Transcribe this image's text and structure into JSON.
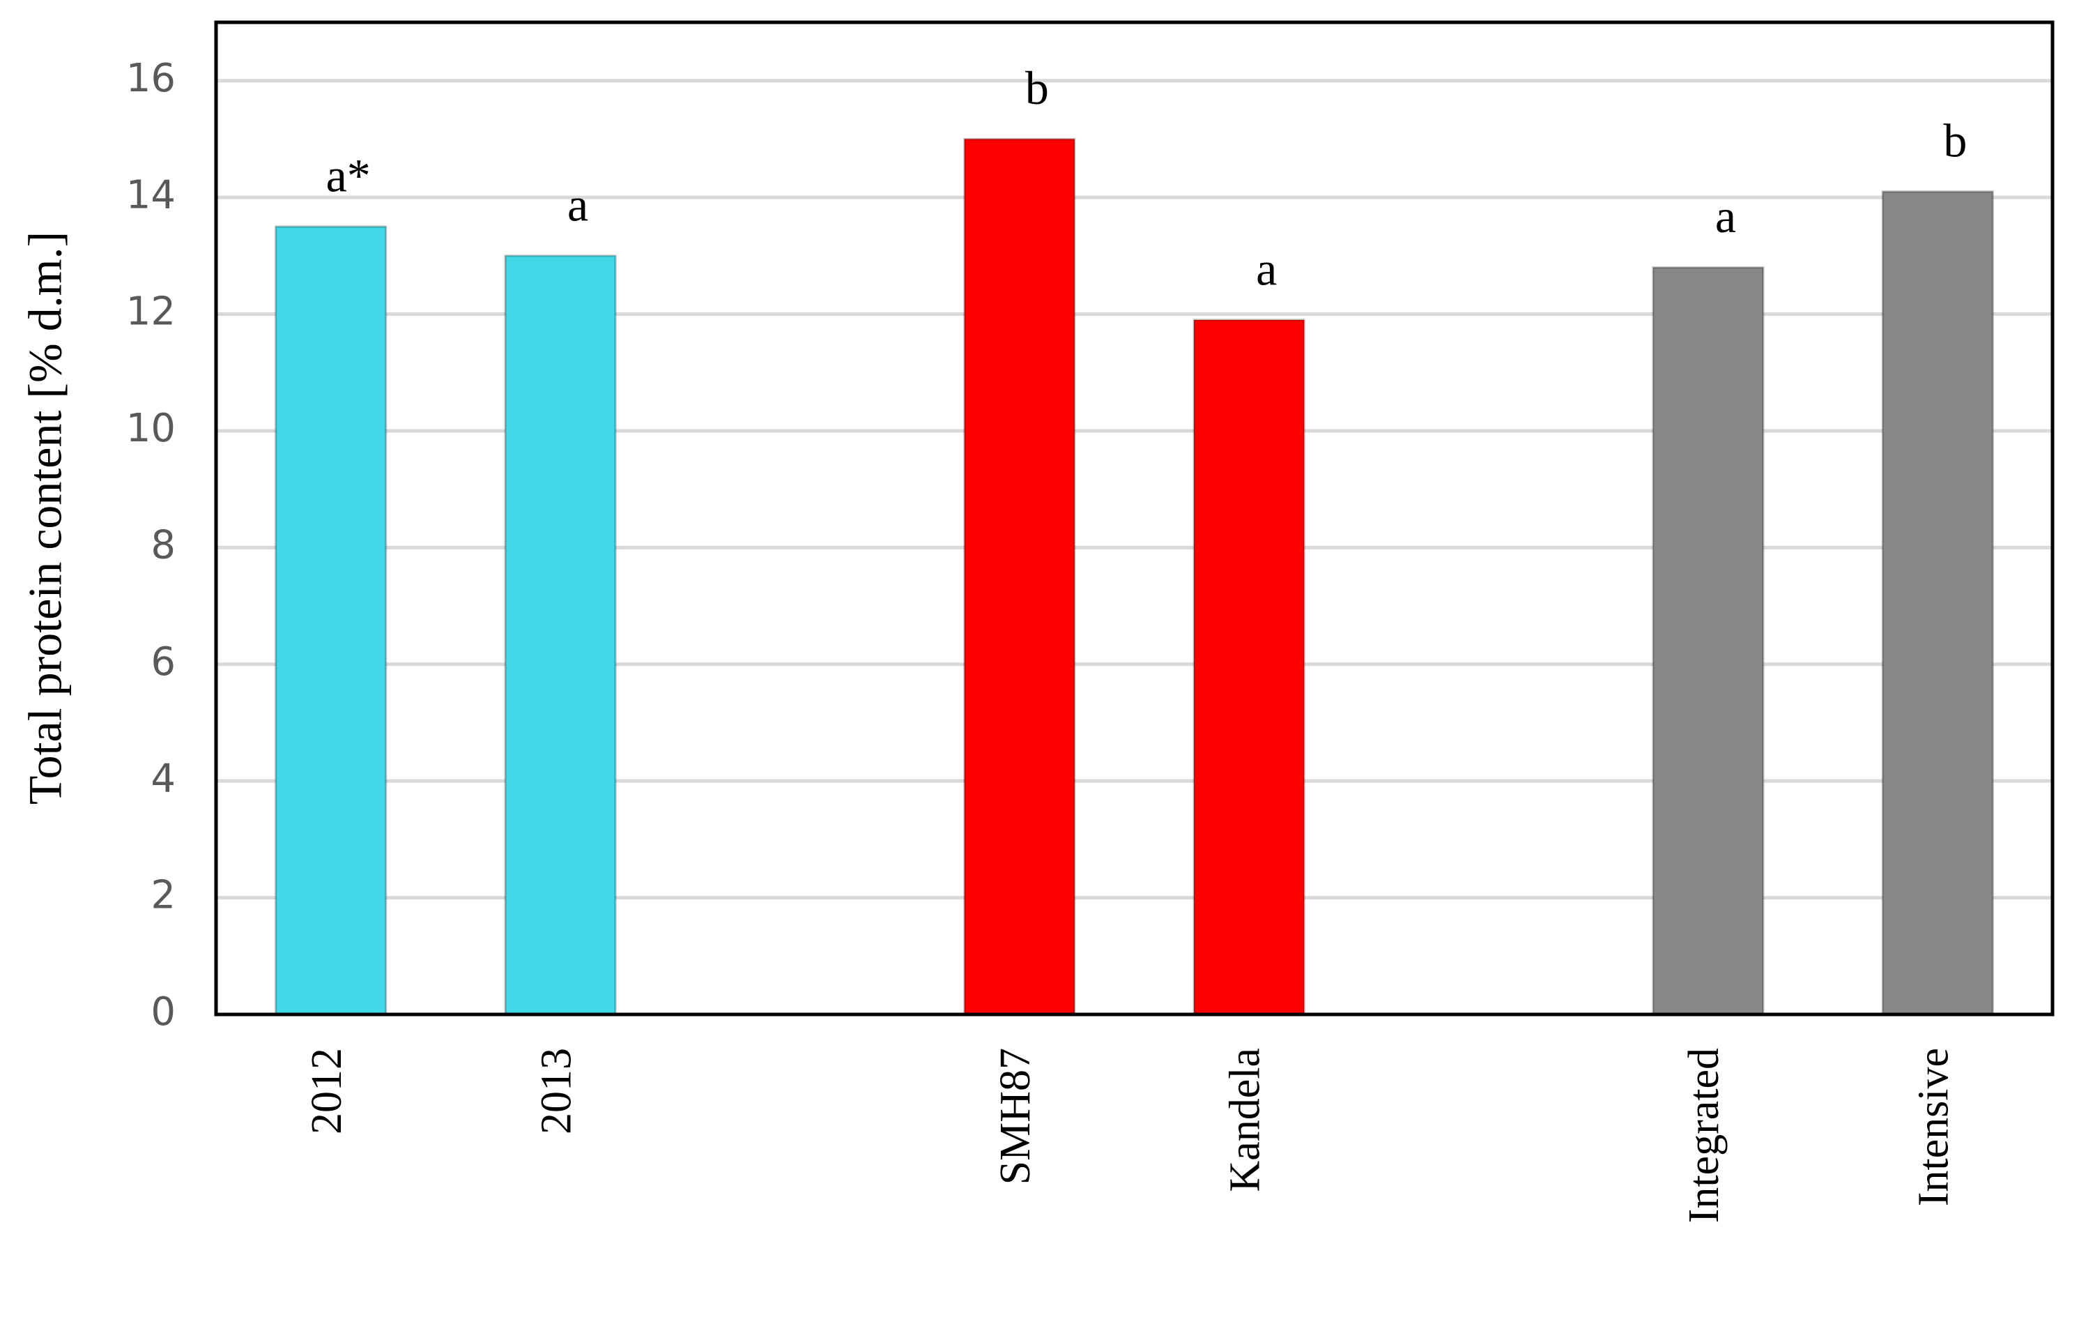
{
  "chart_data": {
    "type": "bar",
    "y_label": "Total protein content [% d.m.]",
    "categories": [
      "2012",
      "2013",
      null,
      "SMH87",
      "Kandela",
      null,
      "Integrated",
      "Intensive"
    ],
    "values": [
      13.5,
      13.0,
      null,
      15.0,
      11.9,
      null,
      12.8,
      14.1
    ],
    "colors": [
      "#41d9e8",
      "#41d9e8",
      null,
      "#ff0000",
      "#ff0000",
      null,
      "#888888",
      "#888888"
    ],
    "annotations": [
      "a*",
      "a",
      null,
      "b",
      "a",
      null,
      "a",
      "b"
    ],
    "ylim": [
      0,
      17
    ],
    "yticks": [
      0,
      2,
      4,
      6,
      8,
      10,
      12,
      14,
      16
    ],
    "grid": true
  }
}
